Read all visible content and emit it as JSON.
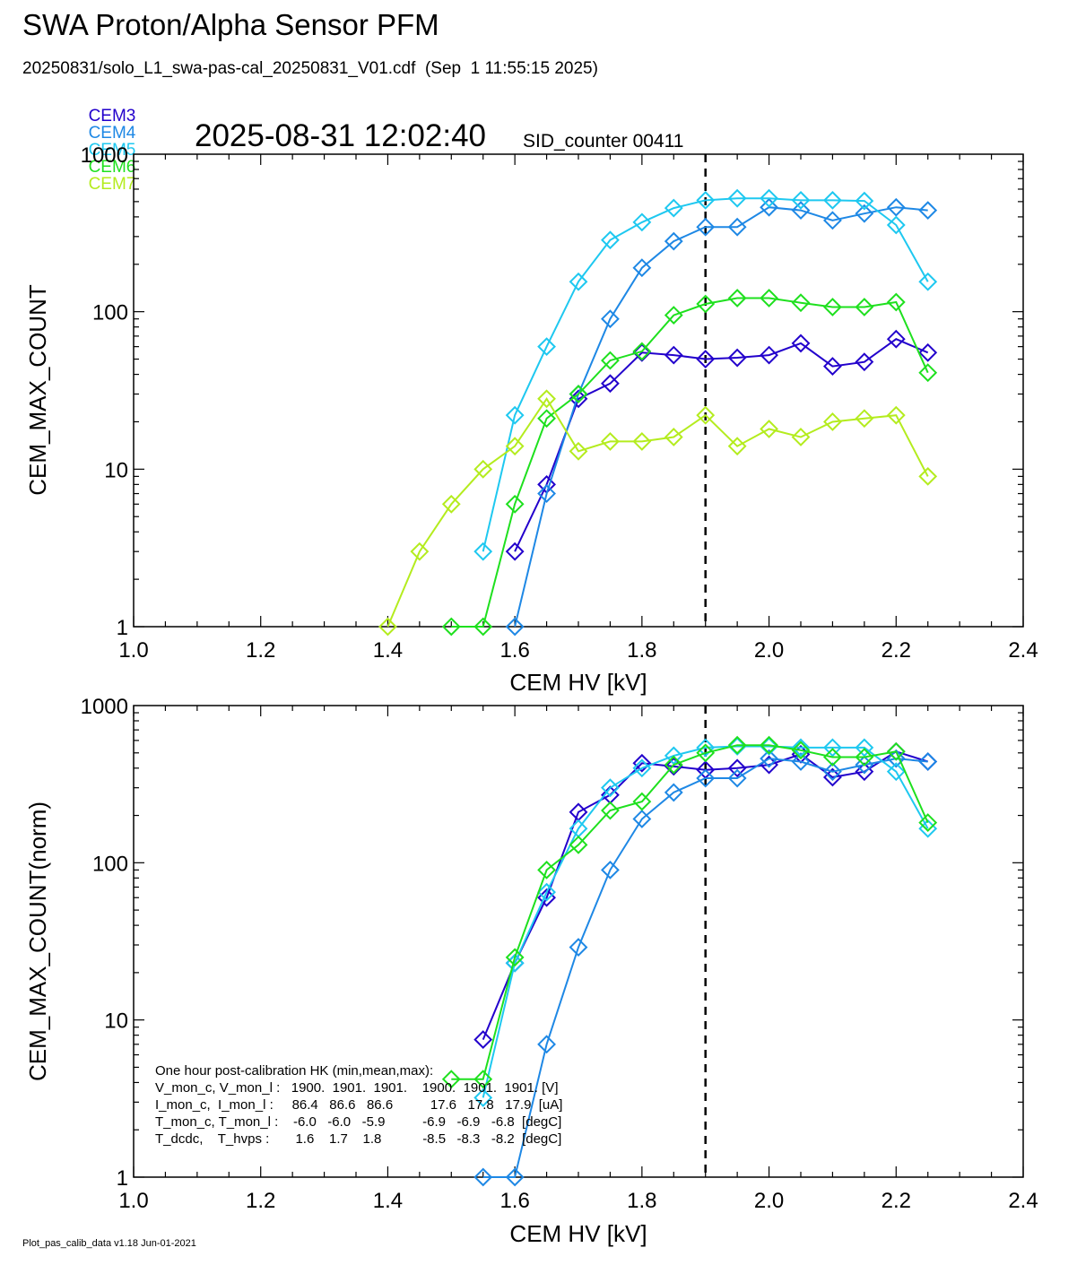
{
  "header": {
    "title": "SWA Proton/Alpha Sensor PFM",
    "subtitle": "20250831/solo_L1_swa-pas-cal_20250831_V01.cdf  (Sep  1 11:55:15 2025)",
    "timestamp": "2025-08-31 12:02:40",
    "sid_counter": "SID_counter 00411"
  },
  "legend": [
    {
      "name": "CEM3",
      "color": "#2200cc"
    },
    {
      "name": "CEM4",
      "color": "#1e88e5"
    },
    {
      "name": "CEM5",
      "color": "#1ec8f0"
    },
    {
      "name": "CEM6",
      "color": "#1ee01e"
    },
    {
      "name": "CEM7",
      "color": "#b4ec1e"
    }
  ],
  "footer": "Plot_pas_calib_data v1.18 Jun-01-2021",
  "hk_box": [
    "One hour post-calibration HK (min,mean,max):",
    "V_mon_c, V_mon_l :   1900.  1901.  1901.    1900.  1901.  1901. [V]",
    "I_mon_c,  I_mon_l :     86.4   86.6   86.6          17.6   17.8   17.9  [uA]",
    "T_mon_c, T_mon_l :    -6.0   -6.0   -5.9          -6.9   -6.9   -6.8  [degC]",
    "T_dcdc,    T_hvps :       1.6    1.7    1.8           -8.5   -8.3   -8.2  [degC]"
  ],
  "chart_data": [
    {
      "type": "line",
      "xlabel": "CEM HV [kV]",
      "ylabel": "CEM_MAX_COUNT",
      "yscale": "log",
      "xlim": [
        1.0,
        2.4
      ],
      "ylim": [
        1,
        1000
      ],
      "x_ticks": [
        "1.0",
        "1.2",
        "1.4",
        "1.6",
        "1.8",
        "2.0",
        "2.2",
        "2.4"
      ],
      "y_ticks": [
        "1",
        "10",
        "100",
        "1000"
      ],
      "vline_x": 1.9,
      "series": [
        {
          "name": "CEM3",
          "color": "#2200cc",
          "x": [
            1.6,
            1.65,
            1.7,
            1.75,
            1.8,
            1.85,
            1.9,
            1.95,
            2.0,
            2.05,
            2.1,
            2.15,
            2.2,
            2.25
          ],
          "y": [
            3,
            8,
            28,
            35,
            55,
            53,
            50,
            51,
            53,
            63,
            45,
            48,
            67,
            55
          ]
        },
        {
          "name": "CEM4",
          "color": "#1e88e5",
          "x": [
            1.6,
            1.65,
            1.7,
            1.75,
            1.8,
            1.85,
            1.9,
            1.95,
            2.0,
            2.05,
            2.1,
            2.15,
            2.2,
            2.25
          ],
          "y": [
            1,
            7,
            30,
            90,
            190,
            280,
            345,
            345,
            460,
            440,
            380,
            420,
            460,
            440
          ]
        },
        {
          "name": "CEM5",
          "color": "#1ec8f0",
          "x": [
            1.55,
            1.6,
            1.65,
            1.7,
            1.75,
            1.8,
            1.85,
            1.9,
            1.95,
            2.0,
            2.05,
            2.1,
            2.15,
            2.2,
            2.25
          ],
          "y": [
            3,
            22,
            60,
            155,
            285,
            370,
            455,
            510,
            525,
            525,
            510,
            510,
            505,
            355,
            155
          ]
        },
        {
          "name": "CEM6",
          "color": "#1ee01e",
          "x": [
            1.5,
            1.55,
            1.6,
            1.65,
            1.7,
            1.75,
            1.8,
            1.85,
            1.9,
            1.95,
            2.0,
            2.05,
            2.1,
            2.15,
            2.2,
            2.25
          ],
          "y": [
            1,
            1,
            6,
            21,
            30,
            49,
            56,
            95,
            112,
            122,
            122,
            114,
            107,
            107,
            115,
            41
          ]
        },
        {
          "name": "CEM7",
          "color": "#b4ec1e",
          "x": [
            1.4,
            1.45,
            1.5,
            1.55,
            1.6,
            1.65,
            1.7,
            1.75,
            1.8,
            1.85,
            1.9,
            1.95,
            2.0,
            2.05,
            2.1,
            2.15,
            2.2,
            2.25
          ],
          "y": [
            1,
            3,
            6,
            10,
            14,
            28,
            13,
            15,
            15,
            16,
            22,
            14,
            18,
            16,
            20,
            21,
            22,
            9
          ]
        }
      ]
    },
    {
      "type": "line",
      "xlabel": "CEM HV [kV]",
      "ylabel": "CEM_MAX_COUNT(norm)",
      "yscale": "log",
      "xlim": [
        1.0,
        2.4
      ],
      "ylim": [
        1,
        1000
      ],
      "x_ticks": [
        "1.0",
        "1.2",
        "1.4",
        "1.6",
        "1.8",
        "2.0",
        "2.2",
        "2.4"
      ],
      "y_ticks": [
        "1",
        "10",
        "100",
        "1000"
      ],
      "vline_x": 1.9,
      "series": [
        {
          "name": "CEM3",
          "color": "#2200cc",
          "x": [
            1.55,
            1.6,
            1.65,
            1.7,
            1.75,
            1.8,
            1.85,
            1.9,
            1.95,
            2.0,
            2.05,
            2.1,
            2.15,
            2.2,
            2.25
          ],
          "y": [
            7.5,
            23,
            60,
            210,
            270,
            430,
            410,
            390,
            400,
            420,
            490,
            350,
            380,
            510,
            440
          ]
        },
        {
          "name": "CEM4",
          "color": "#1e88e5",
          "x": [
            1.55,
            1.6,
            1.65,
            1.7,
            1.75,
            1.8,
            1.85,
            1.9,
            1.95,
            2.0,
            2.05,
            2.1,
            2.15,
            2.2,
            2.25
          ],
          "y": [
            1,
            1,
            7,
            29,
            90,
            190,
            280,
            345,
            345,
            460,
            440,
            380,
            420,
            460,
            440
          ]
        },
        {
          "name": "CEM5",
          "color": "#1ec8f0",
          "x": [
            1.55,
            1.6,
            1.65,
            1.7,
            1.75,
            1.8,
            1.85,
            1.9,
            1.95,
            2.0,
            2.05,
            2.1,
            2.15,
            2.2,
            2.25
          ],
          "y": [
            3.2,
            23,
            65,
            165,
            300,
            400,
            480,
            540,
            550,
            550,
            540,
            540,
            540,
            380,
            165
          ]
        },
        {
          "name": "CEM6",
          "color": "#1ee01e",
          "x": [
            1.5,
            1.55,
            1.6,
            1.65,
            1.7,
            1.75,
            1.8,
            1.85,
            1.9,
            1.95,
            2.0,
            2.05,
            2.1,
            2.15,
            2.2,
            2.25
          ],
          "y": [
            4.2,
            4.2,
            25,
            90,
            130,
            215,
            245,
            420,
            500,
            560,
            560,
            520,
            470,
            470,
            510,
            180
          ]
        },
        {
          "name": "CEM7",
          "color": "#b4ec1e",
          "x": [],
          "y": []
        }
      ]
    }
  ]
}
